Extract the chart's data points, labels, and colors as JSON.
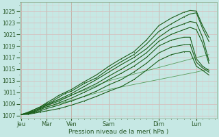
{
  "xlabel": "Pression niveau de la mer( hPa )",
  "background_color": "#c6e8e4",
  "grid_major_color": "#d8b8b8",
  "grid_minor_color": "#e0c8c8",
  "line_color_main": "#1a5e1a",
  "line_color_thin": "#3a8a3a",
  "tick_label_color": "#2a5a2a",
  "ylim": [
    1006.5,
    1026.5
  ],
  "yticks": [
    1007,
    1009,
    1011,
    1013,
    1015,
    1017,
    1019,
    1021,
    1023,
    1025
  ],
  "day_labels": [
    "Jeu",
    "Mar",
    "Ven",
    "Sam",
    "Dim",
    "Lun"
  ],
  "day_positions": [
    0,
    16,
    32,
    56,
    88,
    112
  ],
  "xlim": [
    -1,
    125
  ],
  "main_lines": [
    {
      "x": [
        0,
        4,
        8,
        12,
        16,
        20,
        24,
        28,
        32,
        40,
        48,
        56,
        64,
        72,
        80,
        88,
        96,
        104,
        108,
        112,
        116,
        120
      ],
      "y": [
        1007.2,
        1007.5,
        1008.0,
        1008.5,
        1009.2,
        1009.8,
        1010.5,
        1011.0,
        1011.5,
        1012.8,
        1014.0,
        1015.5,
        1016.8,
        1018.0,
        1020.0,
        1022.5,
        1023.8,
        1024.8,
        1025.1,
        1025.0,
        1022.5,
        1020.5
      ]
    },
    {
      "x": [
        0,
        4,
        8,
        12,
        16,
        20,
        24,
        28,
        32,
        40,
        48,
        56,
        64,
        72,
        80,
        88,
        96,
        104,
        108,
        112,
        116,
        120
      ],
      "y": [
        1007.2,
        1007.5,
        1008.0,
        1008.5,
        1009.0,
        1009.5,
        1010.2,
        1010.8,
        1011.2,
        1012.5,
        1013.5,
        1015.0,
        1016.3,
        1017.5,
        1019.3,
        1021.5,
        1022.8,
        1024.0,
        1024.5,
        1024.7,
        1022.0,
        1019.8
      ]
    },
    {
      "x": [
        0,
        4,
        8,
        12,
        16,
        20,
        24,
        28,
        32,
        40,
        48,
        56,
        64,
        72,
        80,
        88,
        96,
        104,
        108,
        112,
        116,
        120
      ],
      "y": [
        1007.2,
        1007.4,
        1007.8,
        1008.3,
        1008.8,
        1009.3,
        1009.8,
        1010.3,
        1010.8,
        1012.0,
        1013.2,
        1014.5,
        1015.8,
        1017.0,
        1018.5,
        1020.5,
        1022.0,
        1022.8,
        1023.2,
        1023.0,
        1020.5,
        1016.5
      ]
    },
    {
      "x": [
        0,
        4,
        8,
        12,
        16,
        20,
        24,
        28,
        32,
        40,
        48,
        56,
        64,
        72,
        80,
        88,
        96,
        104,
        108,
        112,
        116,
        120
      ],
      "y": [
        1007.2,
        1007.4,
        1007.7,
        1008.2,
        1008.7,
        1009.1,
        1009.5,
        1010.0,
        1010.5,
        1011.5,
        1012.5,
        1013.8,
        1015.0,
        1016.3,
        1017.8,
        1019.8,
        1021.0,
        1021.8,
        1022.2,
        1021.8,
        1019.5,
        1016.0
      ]
    },
    {
      "x": [
        0,
        4,
        8,
        12,
        16,
        20,
        24,
        28,
        32,
        40,
        48,
        56,
        64,
        72,
        80,
        88,
        96,
        104,
        108,
        112,
        116,
        120
      ],
      "y": [
        1007.2,
        1007.3,
        1007.6,
        1008.0,
        1008.5,
        1008.8,
        1009.2,
        1009.6,
        1010.0,
        1011.0,
        1012.0,
        1013.2,
        1014.3,
        1015.5,
        1017.0,
        1019.0,
        1020.0,
        1020.5,
        1020.5,
        1016.8,
        1015.5,
        1014.8
      ]
    },
    {
      "x": [
        0,
        4,
        8,
        12,
        16,
        20,
        24,
        28,
        32,
        40,
        48,
        56,
        64,
        72,
        80,
        88,
        96,
        104,
        108,
        112,
        116,
        120
      ],
      "y": [
        1007.2,
        1007.3,
        1007.5,
        1007.8,
        1008.2,
        1008.5,
        1008.8,
        1009.2,
        1009.5,
        1010.3,
        1011.2,
        1012.3,
        1013.2,
        1014.5,
        1016.0,
        1017.8,
        1018.8,
        1019.2,
        1019.3,
        1016.2,
        1015.2,
        1014.5
      ]
    },
    {
      "x": [
        0,
        4,
        8,
        12,
        16,
        20,
        24,
        28,
        32,
        40,
        48,
        56,
        64,
        72,
        80,
        88,
        96,
        104,
        108,
        112,
        116,
        120
      ],
      "y": [
        1007.2,
        1007.2,
        1007.4,
        1007.6,
        1007.8,
        1008.0,
        1008.2,
        1008.5,
        1008.8,
        1009.5,
        1010.3,
        1011.2,
        1012.0,
        1013.2,
        1014.8,
        1016.5,
        1017.5,
        1018.0,
        1018.0,
        1015.5,
        1014.8,
        1014.0
      ]
    }
  ],
  "thin_lines": [
    {
      "x": [
        0,
        56,
        112,
        120
      ],
      "y": [
        1007.2,
        1013.0,
        1017.0,
        1017.5
      ]
    },
    {
      "x": [
        0,
        56,
        112,
        120
      ],
      "y": [
        1007.2,
        1011.5,
        1014.5,
        1015.0
      ]
    }
  ]
}
